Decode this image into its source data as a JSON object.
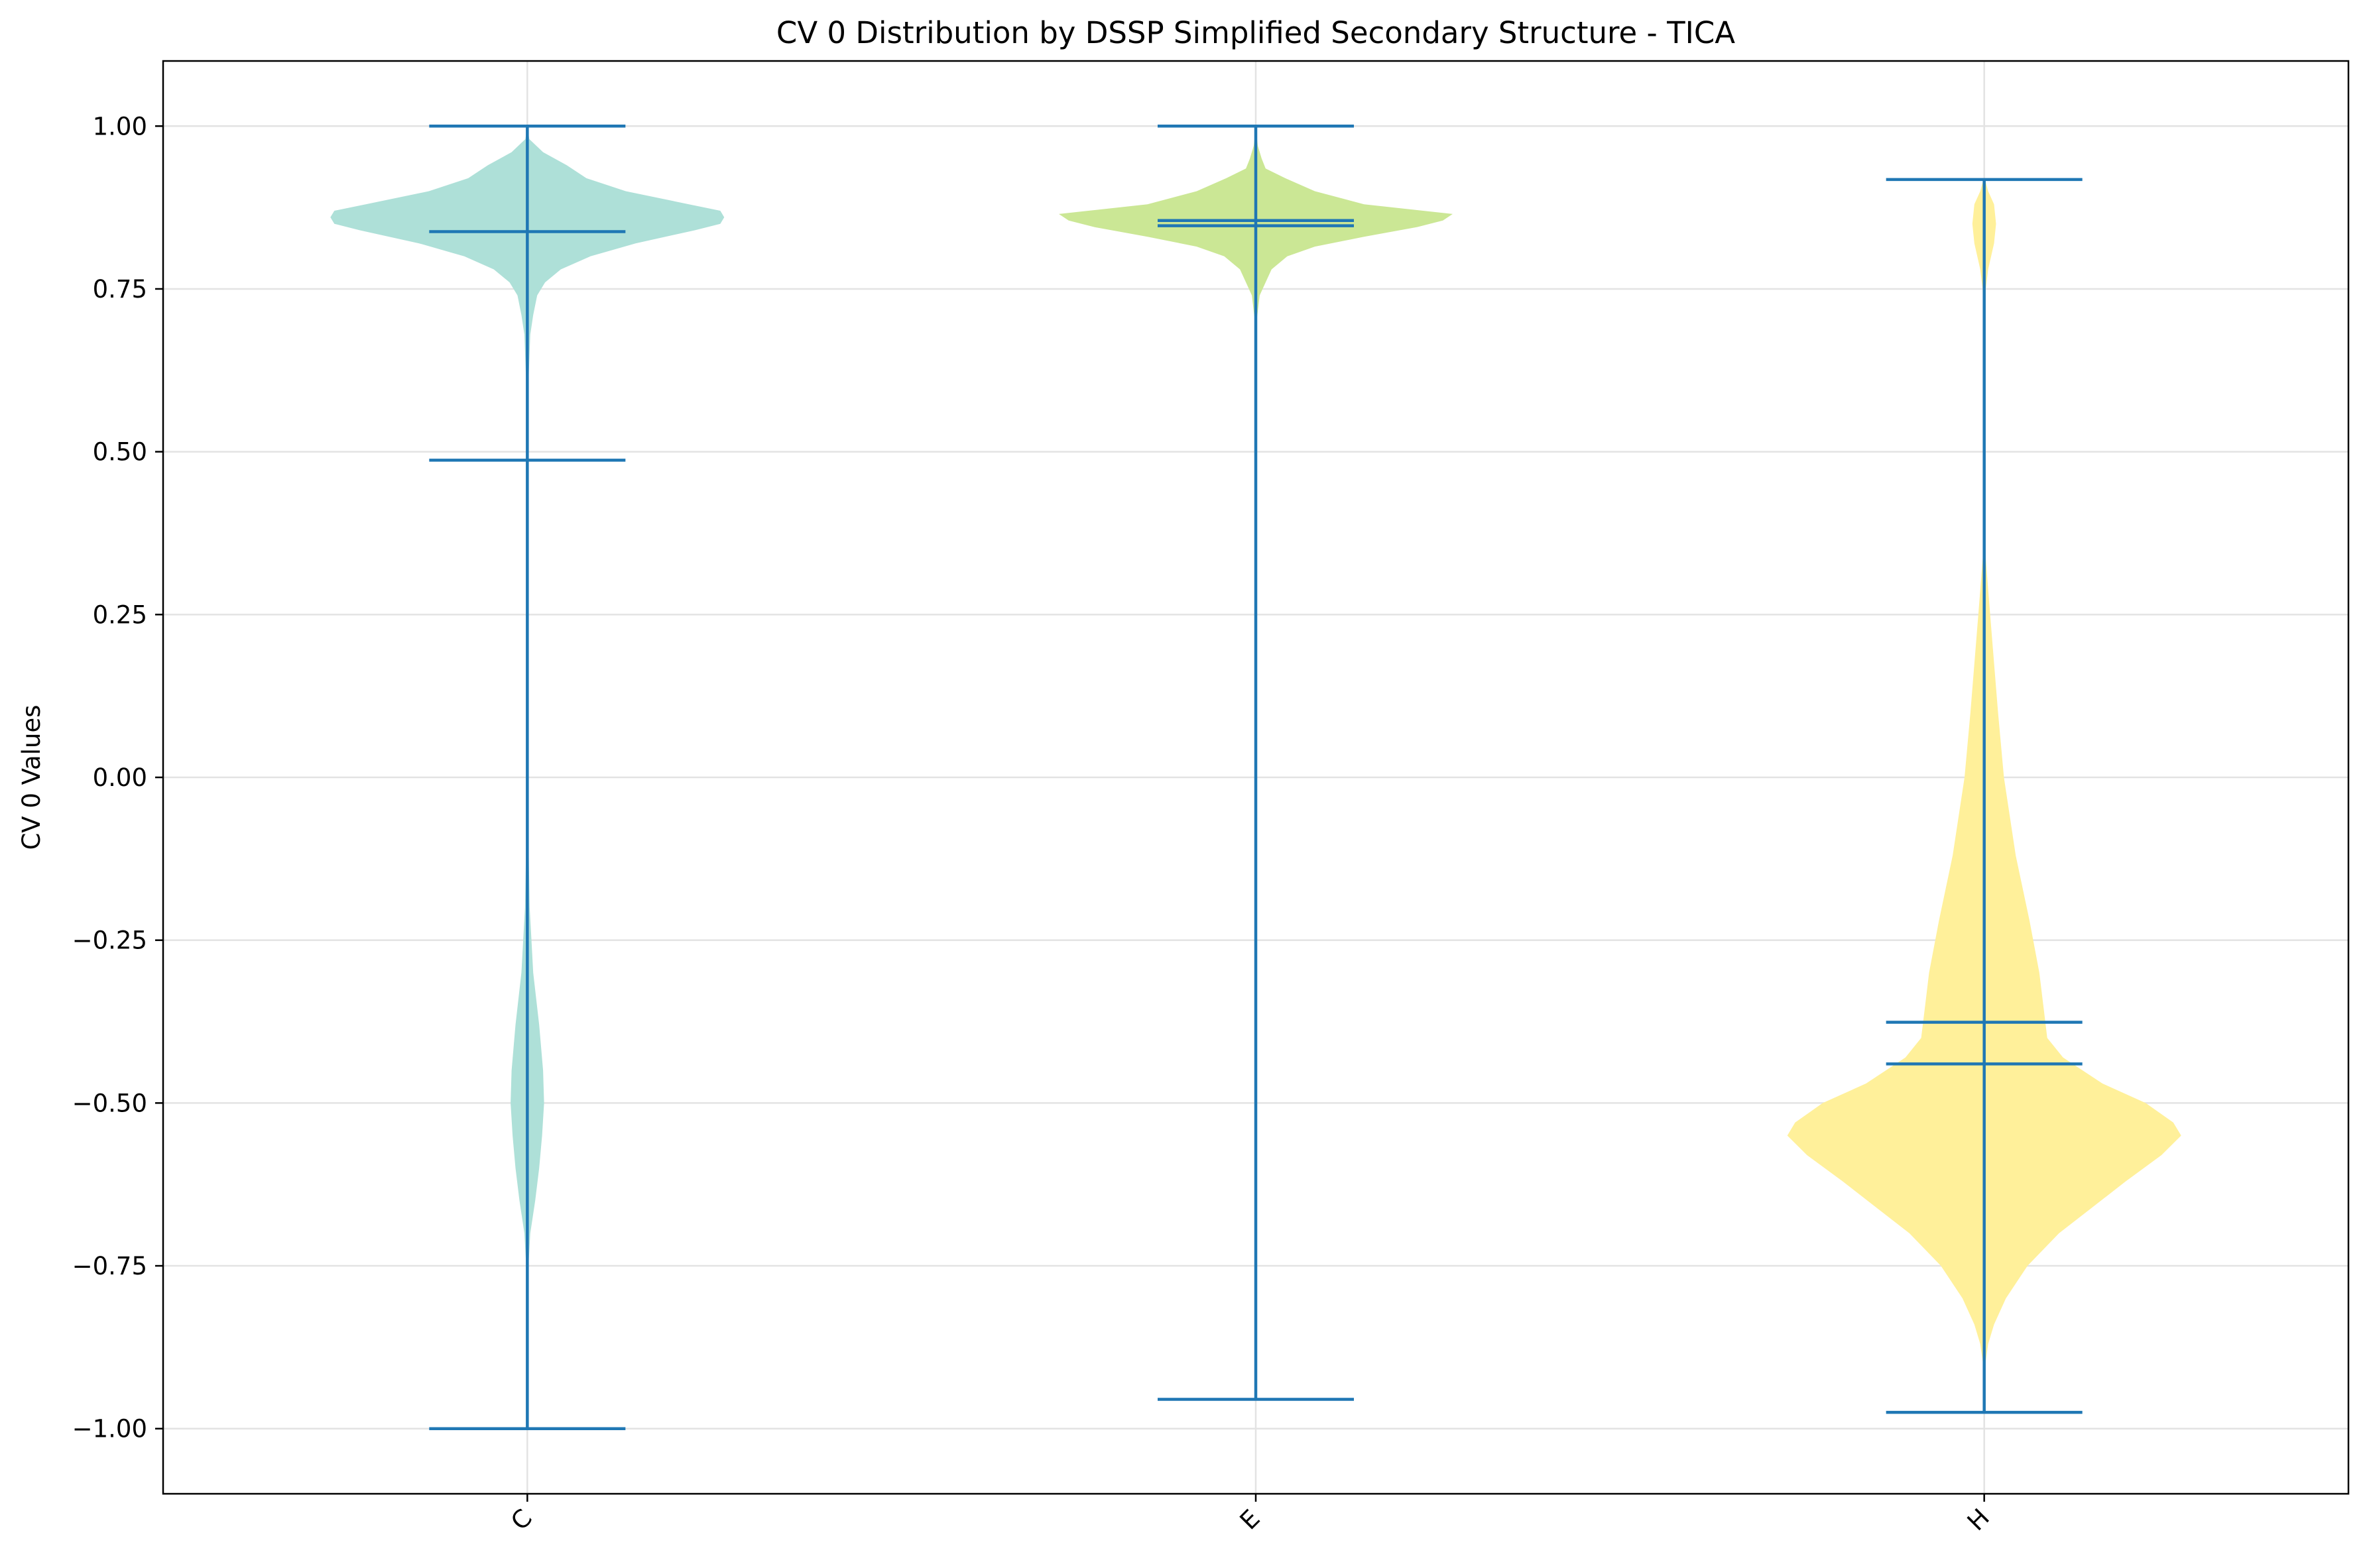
{
  "chart_data": {
    "type": "violin",
    "title": "CV 0 Distribution by DSSP Simplified Secondary Structure - TICA",
    "xlabel": "",
    "ylabel": "CV 0 Values",
    "categories": [
      "C",
      "E",
      "H"
    ],
    "ylim": [
      -1.1,
      1.1
    ],
    "yticks": [
      1.0,
      0.75,
      0.5,
      0.25,
      0.0,
      -0.25,
      -0.5,
      -0.75,
      -1.0
    ],
    "ytick_labels": [
      "1.00",
      "0.75",
      "0.50",
      "0.25",
      "0.00",
      "−0.25",
      "−0.50",
      "−0.75",
      "−1.00"
    ],
    "grid": true,
    "line_color": "#1f77b4",
    "violins": [
      {
        "category": "C",
        "color": "#aee0d8",
        "max": 1.0,
        "min": -1.0,
        "mean": 0.487,
        "median": 0.838,
        "density": [
          [
            1.0,
            0.0
          ],
          [
            0.98,
            0.01
          ],
          [
            0.96,
            0.08
          ],
          [
            0.94,
            0.2
          ],
          [
            0.92,
            0.3
          ],
          [
            0.9,
            0.5
          ],
          [
            0.88,
            0.82
          ],
          [
            0.87,
            0.98
          ],
          [
            0.86,
            1.0
          ],
          [
            0.85,
            0.98
          ],
          [
            0.84,
            0.85
          ],
          [
            0.82,
            0.55
          ],
          [
            0.8,
            0.32
          ],
          [
            0.78,
            0.17
          ],
          [
            0.76,
            0.09
          ],
          [
            0.74,
            0.05
          ],
          [
            0.71,
            0.03
          ],
          [
            0.68,
            0.015
          ],
          [
            0.6,
            0.005
          ],
          [
            0.3,
            0.004
          ],
          [
            0.0,
            0.004
          ],
          [
            -0.1,
            0.006
          ],
          [
            -0.2,
            0.012
          ],
          [
            -0.3,
            0.03
          ],
          [
            -0.38,
            0.06
          ],
          [
            -0.45,
            0.08
          ],
          [
            -0.5,
            0.085
          ],
          [
            -0.55,
            0.075
          ],
          [
            -0.6,
            0.06
          ],
          [
            -0.65,
            0.04
          ],
          [
            -0.7,
            0.015
          ],
          [
            -0.75,
            0.006
          ],
          [
            -0.85,
            0.004
          ],
          [
            -1.0,
            0.004
          ]
        ]
      },
      {
        "category": "E",
        "color": "#cbe795",
        "max": 1.0,
        "min": -0.955,
        "mean": 0.847,
        "median": 0.855,
        "density": [
          [
            1.0,
            0.0
          ],
          [
            0.97,
            0.01
          ],
          [
            0.95,
            0.03
          ],
          [
            0.935,
            0.05
          ],
          [
            0.92,
            0.15
          ],
          [
            0.9,
            0.3
          ],
          [
            0.88,
            0.55
          ],
          [
            0.87,
            0.85
          ],
          [
            0.865,
            1.0
          ],
          [
            0.855,
            0.95
          ],
          [
            0.845,
            0.82
          ],
          [
            0.83,
            0.55
          ],
          [
            0.815,
            0.3
          ],
          [
            0.8,
            0.16
          ],
          [
            0.78,
            0.08
          ],
          [
            0.76,
            0.05
          ],
          [
            0.74,
            0.02
          ],
          [
            0.7,
            0.004
          ],
          [
            0.5,
            0.003
          ],
          [
            0.0,
            0.003
          ],
          [
            -0.5,
            0.003
          ],
          [
            -0.955,
            0.003
          ]
        ]
      },
      {
        "category": "H",
        "color": "#fff09a",
        "max": 0.918,
        "min": -0.975,
        "mean": -0.376,
        "median": -0.44,
        "density": [
          [
            0.918,
            0.004
          ],
          [
            0.9,
            0.02
          ],
          [
            0.88,
            0.05
          ],
          [
            0.85,
            0.06
          ],
          [
            0.82,
            0.05
          ],
          [
            0.78,
            0.02
          ],
          [
            0.75,
            0.008
          ],
          [
            0.7,
            0.004
          ],
          [
            0.5,
            0.004
          ],
          [
            0.35,
            0.004
          ],
          [
            0.25,
            0.03
          ],
          [
            0.1,
            0.07
          ],
          [
            0.0,
            0.1
          ],
          [
            -0.12,
            0.16
          ],
          [
            -0.22,
            0.23
          ],
          [
            -0.3,
            0.28
          ],
          [
            -0.35,
            0.3
          ],
          [
            -0.4,
            0.32
          ],
          [
            -0.43,
            0.4
          ],
          [
            -0.47,
            0.6
          ],
          [
            -0.5,
            0.82
          ],
          [
            -0.53,
            0.96
          ],
          [
            -0.55,
            1.0
          ],
          [
            -0.58,
            0.9
          ],
          [
            -0.62,
            0.72
          ],
          [
            -0.66,
            0.55
          ],
          [
            -0.7,
            0.38
          ],
          [
            -0.75,
            0.22
          ],
          [
            -0.8,
            0.11
          ],
          [
            -0.84,
            0.05
          ],
          [
            -0.87,
            0.02
          ],
          [
            -0.9,
            0.006
          ],
          [
            -0.975,
            0.004
          ]
        ]
      }
    ]
  }
}
